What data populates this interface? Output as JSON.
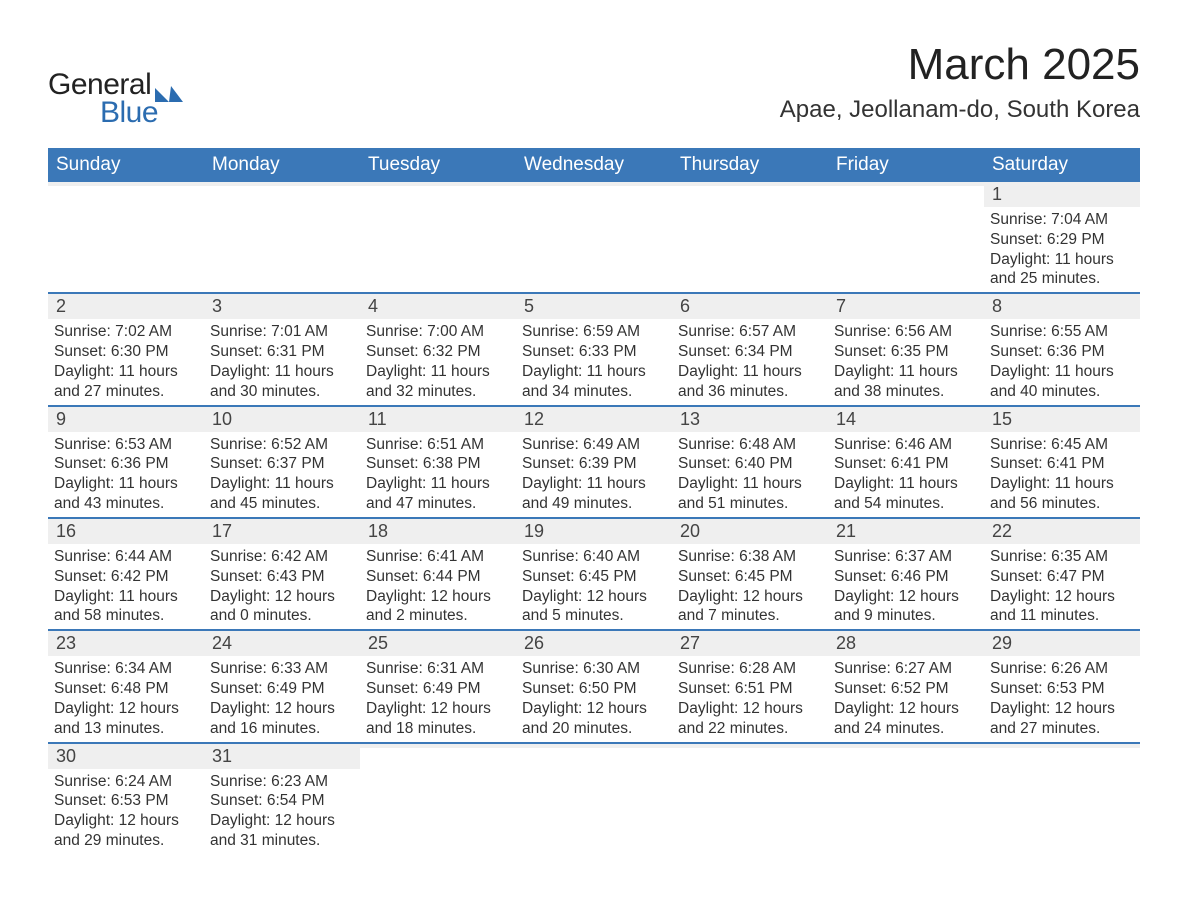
{
  "logo": {
    "text_general": "General",
    "text_blue": "Blue",
    "icon_color": "#2b6cb0"
  },
  "title": "March 2025",
  "location": "Apae, Jeollanam-do, South Korea",
  "colors": {
    "header_bg": "#3b78b8",
    "header_text": "#ffffff",
    "daynum_bg": "#efefef",
    "row_border": "#3b78b8",
    "text": "#333333"
  },
  "weekdays": [
    "Sunday",
    "Monday",
    "Tuesday",
    "Wednesday",
    "Thursday",
    "Friday",
    "Saturday"
  ],
  "weeks": [
    [
      {
        "day": "",
        "sunrise": "",
        "sunset": "",
        "daylight": ""
      },
      {
        "day": "",
        "sunrise": "",
        "sunset": "",
        "daylight": ""
      },
      {
        "day": "",
        "sunrise": "",
        "sunset": "",
        "daylight": ""
      },
      {
        "day": "",
        "sunrise": "",
        "sunset": "",
        "daylight": ""
      },
      {
        "day": "",
        "sunrise": "",
        "sunset": "",
        "daylight": ""
      },
      {
        "day": "",
        "sunrise": "",
        "sunset": "",
        "daylight": ""
      },
      {
        "day": "1",
        "sunrise": "Sunrise: 7:04 AM",
        "sunset": "Sunset: 6:29 PM",
        "daylight": "Daylight: 11 hours and 25 minutes."
      }
    ],
    [
      {
        "day": "2",
        "sunrise": "Sunrise: 7:02 AM",
        "sunset": "Sunset: 6:30 PM",
        "daylight": "Daylight: 11 hours and 27 minutes."
      },
      {
        "day": "3",
        "sunrise": "Sunrise: 7:01 AM",
        "sunset": "Sunset: 6:31 PM",
        "daylight": "Daylight: 11 hours and 30 minutes."
      },
      {
        "day": "4",
        "sunrise": "Sunrise: 7:00 AM",
        "sunset": "Sunset: 6:32 PM",
        "daylight": "Daylight: 11 hours and 32 minutes."
      },
      {
        "day": "5",
        "sunrise": "Sunrise: 6:59 AM",
        "sunset": "Sunset: 6:33 PM",
        "daylight": "Daylight: 11 hours and 34 minutes."
      },
      {
        "day": "6",
        "sunrise": "Sunrise: 6:57 AM",
        "sunset": "Sunset: 6:34 PM",
        "daylight": "Daylight: 11 hours and 36 minutes."
      },
      {
        "day": "7",
        "sunrise": "Sunrise: 6:56 AM",
        "sunset": "Sunset: 6:35 PM",
        "daylight": "Daylight: 11 hours and 38 minutes."
      },
      {
        "day": "8",
        "sunrise": "Sunrise: 6:55 AM",
        "sunset": "Sunset: 6:36 PM",
        "daylight": "Daylight: 11 hours and 40 minutes."
      }
    ],
    [
      {
        "day": "9",
        "sunrise": "Sunrise: 6:53 AM",
        "sunset": "Sunset: 6:36 PM",
        "daylight": "Daylight: 11 hours and 43 minutes."
      },
      {
        "day": "10",
        "sunrise": "Sunrise: 6:52 AM",
        "sunset": "Sunset: 6:37 PM",
        "daylight": "Daylight: 11 hours and 45 minutes."
      },
      {
        "day": "11",
        "sunrise": "Sunrise: 6:51 AM",
        "sunset": "Sunset: 6:38 PM",
        "daylight": "Daylight: 11 hours and 47 minutes."
      },
      {
        "day": "12",
        "sunrise": "Sunrise: 6:49 AM",
        "sunset": "Sunset: 6:39 PM",
        "daylight": "Daylight: 11 hours and 49 minutes."
      },
      {
        "day": "13",
        "sunrise": "Sunrise: 6:48 AM",
        "sunset": "Sunset: 6:40 PM",
        "daylight": "Daylight: 11 hours and 51 minutes."
      },
      {
        "day": "14",
        "sunrise": "Sunrise: 6:46 AM",
        "sunset": "Sunset: 6:41 PM",
        "daylight": "Daylight: 11 hours and 54 minutes."
      },
      {
        "day": "15",
        "sunrise": "Sunrise: 6:45 AM",
        "sunset": "Sunset: 6:41 PM",
        "daylight": "Daylight: 11 hours and 56 minutes."
      }
    ],
    [
      {
        "day": "16",
        "sunrise": "Sunrise: 6:44 AM",
        "sunset": "Sunset: 6:42 PM",
        "daylight": "Daylight: 11 hours and 58 minutes."
      },
      {
        "day": "17",
        "sunrise": "Sunrise: 6:42 AM",
        "sunset": "Sunset: 6:43 PM",
        "daylight": "Daylight: 12 hours and 0 minutes."
      },
      {
        "day": "18",
        "sunrise": "Sunrise: 6:41 AM",
        "sunset": "Sunset: 6:44 PM",
        "daylight": "Daylight: 12 hours and 2 minutes."
      },
      {
        "day": "19",
        "sunrise": "Sunrise: 6:40 AM",
        "sunset": "Sunset: 6:45 PM",
        "daylight": "Daylight: 12 hours and 5 minutes."
      },
      {
        "day": "20",
        "sunrise": "Sunrise: 6:38 AM",
        "sunset": "Sunset: 6:45 PM",
        "daylight": "Daylight: 12 hours and 7 minutes."
      },
      {
        "day": "21",
        "sunrise": "Sunrise: 6:37 AM",
        "sunset": "Sunset: 6:46 PM",
        "daylight": "Daylight: 12 hours and 9 minutes."
      },
      {
        "day": "22",
        "sunrise": "Sunrise: 6:35 AM",
        "sunset": "Sunset: 6:47 PM",
        "daylight": "Daylight: 12 hours and 11 minutes."
      }
    ],
    [
      {
        "day": "23",
        "sunrise": "Sunrise: 6:34 AM",
        "sunset": "Sunset: 6:48 PM",
        "daylight": "Daylight: 12 hours and 13 minutes."
      },
      {
        "day": "24",
        "sunrise": "Sunrise: 6:33 AM",
        "sunset": "Sunset: 6:49 PM",
        "daylight": "Daylight: 12 hours and 16 minutes."
      },
      {
        "day": "25",
        "sunrise": "Sunrise: 6:31 AM",
        "sunset": "Sunset: 6:49 PM",
        "daylight": "Daylight: 12 hours and 18 minutes."
      },
      {
        "day": "26",
        "sunrise": "Sunrise: 6:30 AM",
        "sunset": "Sunset: 6:50 PM",
        "daylight": "Daylight: 12 hours and 20 minutes."
      },
      {
        "day": "27",
        "sunrise": "Sunrise: 6:28 AM",
        "sunset": "Sunset: 6:51 PM",
        "daylight": "Daylight: 12 hours and 22 minutes."
      },
      {
        "day": "28",
        "sunrise": "Sunrise: 6:27 AM",
        "sunset": "Sunset: 6:52 PM",
        "daylight": "Daylight: 12 hours and 24 minutes."
      },
      {
        "day": "29",
        "sunrise": "Sunrise: 6:26 AM",
        "sunset": "Sunset: 6:53 PM",
        "daylight": "Daylight: 12 hours and 27 minutes."
      }
    ],
    [
      {
        "day": "30",
        "sunrise": "Sunrise: 6:24 AM",
        "sunset": "Sunset: 6:53 PM",
        "daylight": "Daylight: 12 hours and 29 minutes."
      },
      {
        "day": "31",
        "sunrise": "Sunrise: 6:23 AM",
        "sunset": "Sunset: 6:54 PM",
        "daylight": "Daylight: 12 hours and 31 minutes."
      },
      {
        "day": "",
        "sunrise": "",
        "sunset": "",
        "daylight": ""
      },
      {
        "day": "",
        "sunrise": "",
        "sunset": "",
        "daylight": ""
      },
      {
        "day": "",
        "sunrise": "",
        "sunset": "",
        "daylight": ""
      },
      {
        "day": "",
        "sunrise": "",
        "sunset": "",
        "daylight": ""
      },
      {
        "day": "",
        "sunrise": "",
        "sunset": "",
        "daylight": ""
      }
    ]
  ]
}
